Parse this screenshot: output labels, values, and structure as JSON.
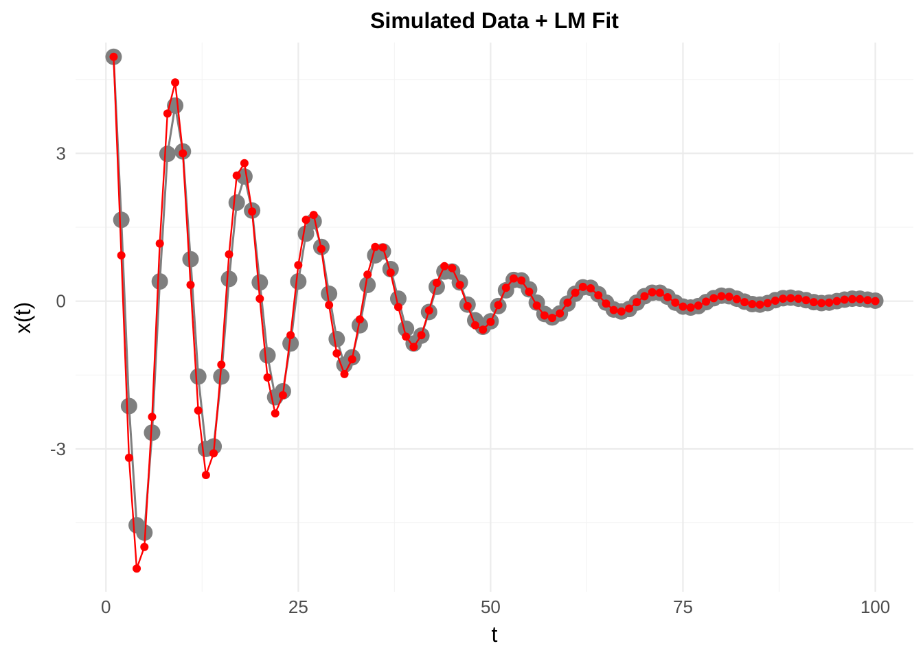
{
  "chart_data": {
    "type": "line",
    "title": "Simulated Data + LM Fit",
    "xlabel": "t",
    "ylabel": "x(t)",
    "xlim": [
      -3.95,
      104.95
    ],
    "ylim": [
      -5.9,
      5.25
    ],
    "x_ticks": [
      0,
      25,
      50,
      75,
      100
    ],
    "x_tick_labels": [
      "0",
      "25",
      "50",
      "75",
      "100"
    ],
    "y_ticks": [
      -3,
      0,
      3
    ],
    "y_tick_labels": [
      "-3",
      "0",
      "3"
    ],
    "grid": true,
    "legend": "none",
    "series": [
      {
        "kind": "observed",
        "color": "#7f7f7f",
        "x": [
          1,
          2,
          3,
          4,
          5,
          6,
          7,
          8,
          9,
          10,
          11,
          12,
          13,
          14,
          15,
          16,
          17,
          18,
          19,
          20,
          21,
          22,
          23,
          24,
          25,
          26,
          27,
          28,
          29,
          30,
          31,
          32,
          33,
          34,
          35,
          36,
          37,
          38,
          39,
          40,
          41,
          42,
          43,
          44,
          45,
          46,
          47,
          48,
          49,
          50,
          51,
          52,
          53,
          54,
          55,
          56,
          57,
          58,
          59,
          60,
          61,
          62,
          63,
          64,
          65,
          66,
          67,
          68,
          69,
          70,
          71,
          72,
          73,
          74,
          75,
          76,
          77,
          78,
          79,
          80,
          81,
          82,
          83,
          84,
          85,
          86,
          87,
          88,
          89,
          90,
          91,
          92,
          93,
          94,
          95,
          96,
          97,
          98,
          99,
          100
        ],
        "y": [
          4.96,
          1.65,
          -2.13,
          -4.55,
          -4.7,
          -2.67,
          0.4,
          2.99,
          3.97,
          3.04,
          0.85,
          -1.53,
          -3.0,
          -2.95,
          -1.53,
          0.45,
          2.0,
          2.53,
          1.84,
          0.38,
          -1.1,
          -1.95,
          -1.83,
          -0.86,
          0.4,
          1.37,
          1.62,
          1.1,
          0.15,
          -0.77,
          -1.29,
          -1.14,
          -0.49,
          0.33,
          0.93,
          1.01,
          0.65,
          0.05,
          -0.56,
          -0.86,
          -0.7,
          -0.22,
          0.29,
          0.6,
          0.6,
          0.38,
          -0.07,
          -0.39,
          -0.52,
          -0.41,
          -0.1,
          0.22,
          0.43,
          0.42,
          0.24,
          -0.03,
          -0.26,
          -0.33,
          -0.25,
          -0.05,
          0.15,
          0.28,
          0.27,
          0.14,
          -0.03,
          -0.17,
          -0.21,
          -0.16,
          -0.03,
          0.1,
          0.17,
          0.17,
          0.09,
          -0.03,
          -0.11,
          -0.13,
          -0.1,
          -0.02,
          0.06,
          0.11,
          0.1,
          0.05,
          -0.01,
          -0.06,
          -0.07,
          -0.04,
          0.02,
          0.06,
          0.07,
          0.05,
          0.02,
          -0.02,
          -0.04,
          -0.03,
          0.0,
          0.03,
          0.05,
          0.05,
          0.03,
          0.01
        ]
      },
      {
        "kind": "fit",
        "color": "#ff0000",
        "x": [
          1,
          2,
          3,
          4,
          5,
          6,
          7,
          8,
          9,
          10,
          11,
          12,
          13,
          14,
          15,
          16,
          17,
          18,
          19,
          20,
          21,
          22,
          23,
          24,
          25,
          26,
          27,
          28,
          29,
          30,
          31,
          32,
          33,
          34,
          35,
          36,
          37,
          38,
          39,
          40,
          41,
          42,
          43,
          44,
          45,
          46,
          47,
          48,
          49,
          50,
          51,
          52,
          53,
          54,
          55,
          56,
          57,
          58,
          59,
          60,
          61,
          62,
          63,
          64,
          65,
          66,
          67,
          68,
          69,
          70,
          71,
          72,
          73,
          74,
          75,
          76,
          77,
          78,
          79,
          80,
          81,
          82,
          83,
          84,
          85,
          86,
          87,
          88,
          89,
          90,
          91,
          92,
          93,
          94,
          95,
          96,
          97,
          98,
          99,
          100
        ],
        "y": [
          4.96,
          0.93,
          -3.18,
          -5.43,
          -4.99,
          -2.35,
          1.17,
          3.81,
          4.44,
          3.0,
          0.33,
          -2.22,
          -3.53,
          -3.09,
          -1.29,
          0.95,
          2.55,
          2.8,
          1.82,
          0.05,
          -1.55,
          -2.28,
          -1.91,
          -0.69,
          0.73,
          1.65,
          1.75,
          1.06,
          -0.08,
          -1.06,
          -1.48,
          -1.18,
          -0.37,
          0.54,
          1.1,
          1.09,
          0.58,
          -0.12,
          -0.72,
          -0.93,
          -0.69,
          -0.19,
          0.37,
          0.71,
          0.67,
          0.33,
          -0.1,
          -0.49,
          -0.58,
          -0.42,
          -0.08,
          0.27,
          0.46,
          0.42,
          0.19,
          -0.09,
          -0.29,
          -0.34,
          -0.25,
          -0.03,
          0.17,
          0.29,
          0.26,
          0.12,
          -0.05,
          -0.18,
          -0.21,
          -0.15,
          -0.02,
          0.1,
          0.18,
          0.17,
          0.08,
          -0.03,
          -0.11,
          -0.13,
          -0.09,
          -0.01,
          0.06,
          0.1,
          0.09,
          0.04,
          -0.02,
          -0.06,
          -0.07,
          -0.04,
          0.01,
          0.05,
          0.06,
          0.05,
          0.02,
          -0.02,
          -0.04,
          -0.03,
          0.0,
          0.03,
          0.04,
          0.04,
          0.02,
          0.0
        ]
      }
    ]
  }
}
